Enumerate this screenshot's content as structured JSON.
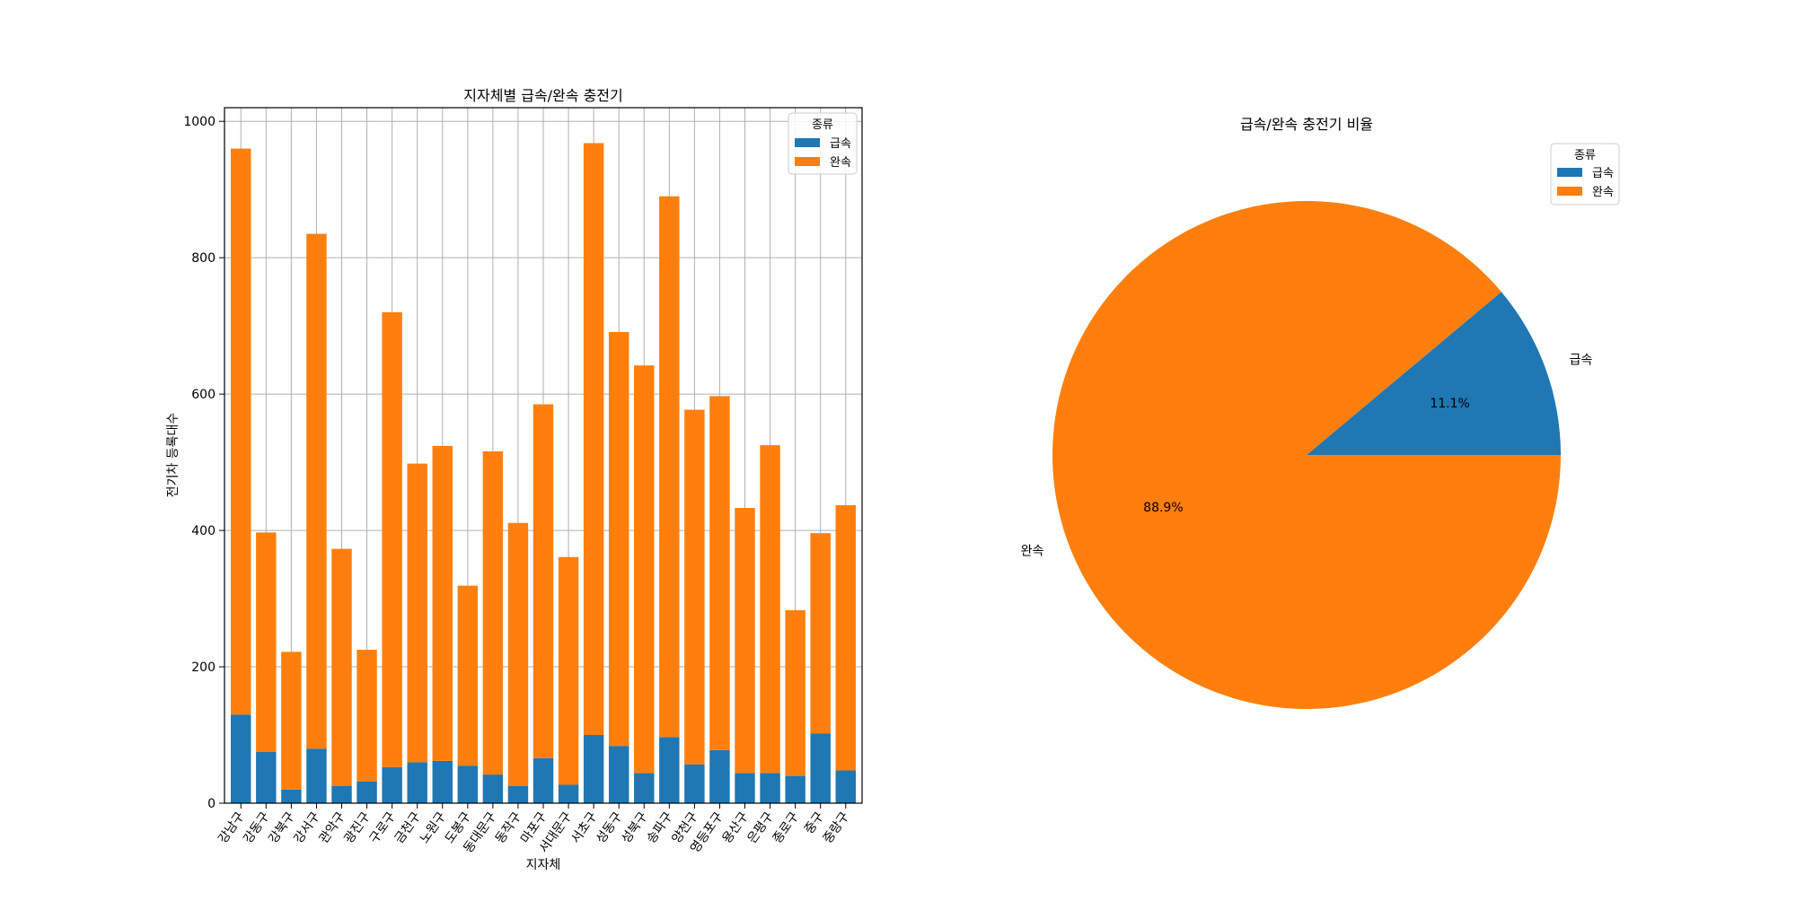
{
  "chart_data": [
    {
      "type": "bar",
      "stacked": true,
      "title": "지자체별 급속/완속 충전기",
      "xlabel": "지자체",
      "ylabel": "전기차 등록대수",
      "ylim": [
        0,
        1020
      ],
      "yticks": [
        0,
        200,
        400,
        600,
        800,
        1000
      ],
      "grid": true,
      "legend": {
        "title": "종류",
        "placement": "top-right"
      },
      "categories": [
        "강남구",
        "강동구",
        "강북구",
        "강서구",
        "관악구",
        "광진구",
        "구로구",
        "금천구",
        "노원구",
        "도봉구",
        "동대문구",
        "동작구",
        "마포구",
        "서대문구",
        "서초구",
        "성동구",
        "성북구",
        "송파구",
        "양천구",
        "영등포구",
        "용산구",
        "은평구",
        "종로구",
        "중구",
        "중랑구"
      ],
      "series": [
        {
          "name": "급속",
          "color": "#1f77b4",
          "values": [
            130,
            75,
            20,
            80,
            25,
            32,
            53,
            60,
            62,
            55,
            42,
            25,
            66,
            27,
            100,
            84,
            44,
            97,
            57,
            78,
            44,
            44,
            40,
            102,
            48
          ]
        },
        {
          "name": "완속",
          "color": "#ff7f0e",
          "values": [
            830,
            322,
            202,
            755,
            348,
            193,
            667,
            438,
            462,
            264,
            474,
            386,
            519,
            334,
            868,
            607,
            598,
            793,
            520,
            519,
            389,
            481,
            243,
            294,
            389
          ]
        }
      ]
    },
    {
      "type": "pie",
      "title": "급속/완속 충전기 비율",
      "legend": {
        "title": "종류",
        "placement": "top-right"
      },
      "slices": [
        {
          "label": "급속",
          "value": 11.1,
          "pct_label": "11.1%",
          "color": "#1f77b4"
        },
        {
          "label": "완속",
          "value": 88.9,
          "pct_label": "88.9%",
          "color": "#ff7f0e"
        }
      ]
    }
  ]
}
